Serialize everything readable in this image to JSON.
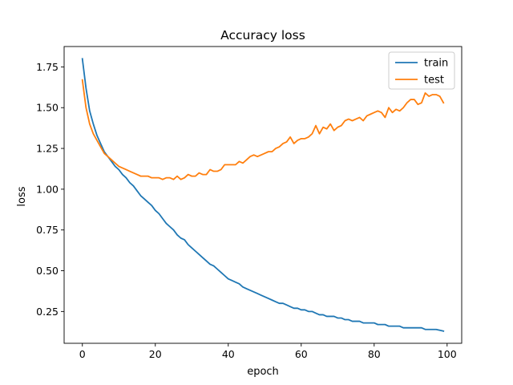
{
  "chart_data": {
    "type": "line",
    "title": "Accuracy loss",
    "xlabel": "epoch",
    "ylabel": "loss",
    "xlim": [
      -5,
      104
    ],
    "ylim": [
      0.055,
      1.875
    ],
    "xticks": [
      0,
      20,
      40,
      60,
      80,
      100
    ],
    "xtick_labels": [
      "0",
      "20",
      "40",
      "60",
      "80",
      "100"
    ],
    "yticks": [
      0.25,
      0.5,
      0.75,
      1.0,
      1.25,
      1.5,
      1.75
    ],
    "ytick_labels": [
      "0.25",
      "0.50",
      "0.75",
      "1.00",
      "1.25",
      "1.50",
      "1.75"
    ],
    "grid": false,
    "legend_position": "top-right",
    "series": [
      {
        "name": "train",
        "color": "#1f77b4",
        "x": [
          0,
          1,
          2,
          3,
          4,
          5,
          6,
          7,
          8,
          9,
          10,
          11,
          12,
          13,
          14,
          15,
          16,
          17,
          18,
          19,
          20,
          21,
          22,
          23,
          24,
          25,
          26,
          27,
          28,
          29,
          30,
          31,
          32,
          33,
          34,
          35,
          36,
          37,
          38,
          39,
          40,
          41,
          42,
          43,
          44,
          45,
          46,
          47,
          48,
          49,
          50,
          51,
          52,
          53,
          54,
          55,
          56,
          57,
          58,
          59,
          60,
          61,
          62,
          63,
          64,
          65,
          66,
          67,
          68,
          69,
          70,
          71,
          72,
          73,
          74,
          75,
          76,
          77,
          78,
          79,
          80,
          81,
          82,
          83,
          84,
          85,
          86,
          87,
          88,
          89,
          90,
          91,
          92,
          93,
          94,
          95,
          96,
          97,
          98,
          99
        ],
        "y": [
          1.8,
          1.62,
          1.48,
          1.4,
          1.33,
          1.28,
          1.23,
          1.2,
          1.17,
          1.14,
          1.12,
          1.09,
          1.07,
          1.04,
          1.02,
          0.99,
          0.96,
          0.94,
          0.92,
          0.9,
          0.87,
          0.85,
          0.82,
          0.79,
          0.77,
          0.75,
          0.72,
          0.7,
          0.69,
          0.66,
          0.64,
          0.62,
          0.6,
          0.58,
          0.56,
          0.54,
          0.53,
          0.51,
          0.49,
          0.47,
          0.45,
          0.44,
          0.43,
          0.42,
          0.4,
          0.39,
          0.38,
          0.37,
          0.36,
          0.35,
          0.34,
          0.33,
          0.32,
          0.31,
          0.3,
          0.3,
          0.29,
          0.28,
          0.27,
          0.27,
          0.26,
          0.26,
          0.25,
          0.25,
          0.24,
          0.23,
          0.23,
          0.22,
          0.22,
          0.22,
          0.21,
          0.21,
          0.2,
          0.2,
          0.19,
          0.19,
          0.19,
          0.18,
          0.18,
          0.18,
          0.18,
          0.17,
          0.17,
          0.17,
          0.16,
          0.16,
          0.16,
          0.16,
          0.15,
          0.15,
          0.15,
          0.15,
          0.15,
          0.15,
          0.14,
          0.14,
          0.14,
          0.14,
          0.135,
          0.13
        ]
      },
      {
        "name": "test",
        "color": "#ff7f0e",
        "x": [
          0,
          1,
          2,
          3,
          4,
          5,
          6,
          7,
          8,
          9,
          10,
          11,
          12,
          13,
          14,
          15,
          16,
          17,
          18,
          19,
          20,
          21,
          22,
          23,
          24,
          25,
          26,
          27,
          28,
          29,
          30,
          31,
          32,
          33,
          34,
          35,
          36,
          37,
          38,
          39,
          40,
          41,
          42,
          43,
          44,
          45,
          46,
          47,
          48,
          49,
          50,
          51,
          52,
          53,
          54,
          55,
          56,
          57,
          58,
          59,
          60,
          61,
          62,
          63,
          64,
          65,
          66,
          67,
          68,
          69,
          70,
          71,
          72,
          73,
          74,
          75,
          76,
          77,
          78,
          79,
          80,
          81,
          82,
          83,
          84,
          85,
          86,
          87,
          88,
          89,
          90,
          91,
          92,
          93,
          94,
          95,
          96,
          97,
          98,
          99
        ],
        "y": [
          1.67,
          1.5,
          1.4,
          1.34,
          1.3,
          1.26,
          1.22,
          1.2,
          1.18,
          1.16,
          1.14,
          1.13,
          1.12,
          1.11,
          1.1,
          1.09,
          1.08,
          1.08,
          1.08,
          1.07,
          1.07,
          1.07,
          1.06,
          1.07,
          1.07,
          1.06,
          1.08,
          1.06,
          1.07,
          1.09,
          1.08,
          1.08,
          1.1,
          1.09,
          1.09,
          1.12,
          1.11,
          1.11,
          1.12,
          1.15,
          1.15,
          1.15,
          1.15,
          1.17,
          1.16,
          1.18,
          1.2,
          1.21,
          1.2,
          1.21,
          1.22,
          1.23,
          1.23,
          1.25,
          1.26,
          1.28,
          1.29,
          1.32,
          1.28,
          1.3,
          1.31,
          1.31,
          1.32,
          1.34,
          1.39,
          1.34,
          1.38,
          1.37,
          1.4,
          1.36,
          1.38,
          1.39,
          1.42,
          1.43,
          1.42,
          1.43,
          1.44,
          1.42,
          1.45,
          1.46,
          1.47,
          1.48,
          1.47,
          1.44,
          1.5,
          1.47,
          1.49,
          1.48,
          1.5,
          1.53,
          1.55,
          1.55,
          1.52,
          1.53,
          1.59,
          1.57,
          1.58,
          1.58,
          1.57,
          1.53
        ]
      }
    ]
  }
}
